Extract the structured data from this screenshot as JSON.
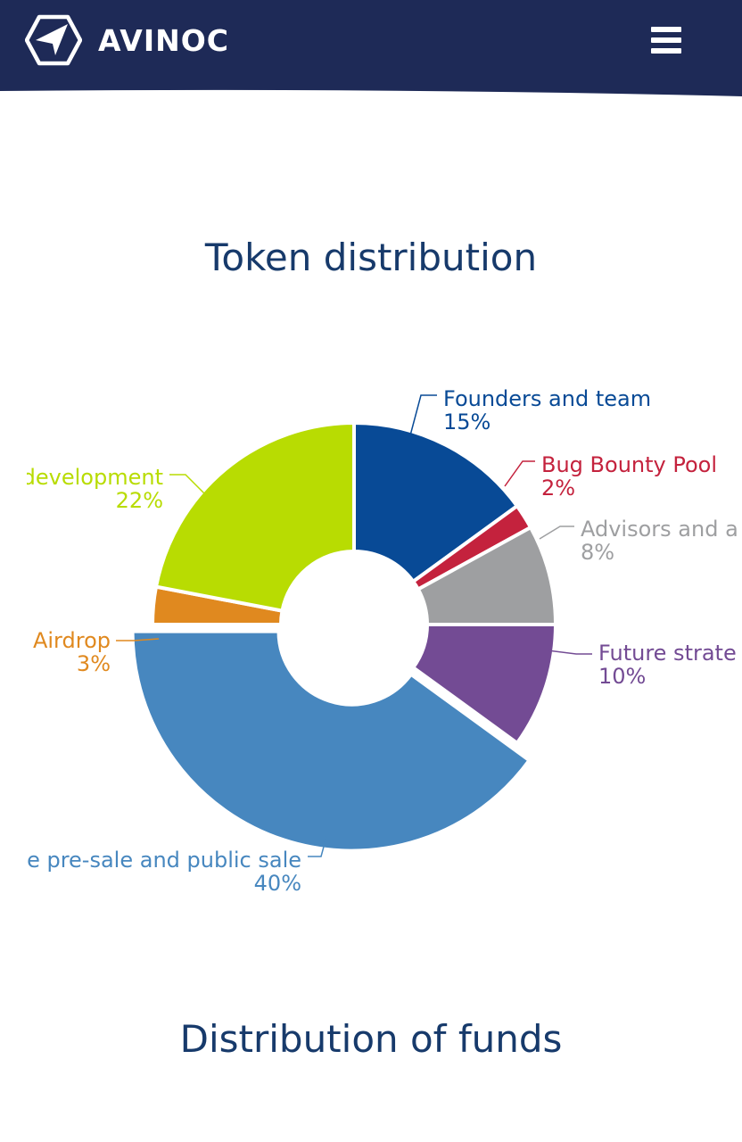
{
  "header": {
    "brand": "AVINOC",
    "logo_icon": "avinoc-logo-icon",
    "menu_icon": "hamburger-menu-icon",
    "background_color": "#1e2a57"
  },
  "sections": {
    "token_title": "Token distribution",
    "funds_title": "Distribution of funds"
  },
  "chart_data": {
    "type": "pie",
    "donut": true,
    "title": "Token distribution",
    "slices": [
      {
        "label": "Founders and team",
        "value": 15,
        "display": "15%",
        "color": "#084a96"
      },
      {
        "label": "Bug Bounty Pool",
        "value": 2,
        "display": "2%",
        "color": "#c4223d"
      },
      {
        "label": "Advisors and a",
        "value": 8,
        "display": "8%",
        "color": "#9e9fa1"
      },
      {
        "label": "Future strate",
        "value": 10,
        "display": "10%",
        "color": "#734b94"
      },
      {
        "label": "e pre-sale and public sale",
        "value": 40,
        "display": "40%",
        "color": "#4787bf"
      },
      {
        "label": "Airdrop",
        "value": 3,
        "display": "3%",
        "color": "#e0891f"
      },
      {
        "label": "development",
        "value": 22,
        "display": "22%",
        "color": "#b8dc02"
      }
    ]
  }
}
